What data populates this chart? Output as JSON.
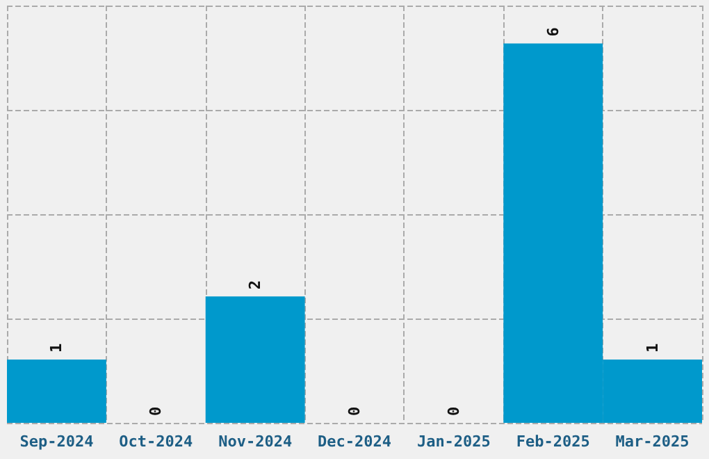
{
  "chart_data": {
    "type": "bar",
    "categories": [
      "Sep-2024",
      "Oct-2024",
      "Nov-2024",
      "Dec-2024",
      "Jan-2025",
      "Feb-2025",
      "Mar-2025"
    ],
    "values": [
      1,
      0,
      2,
      0,
      0,
      6,
      1
    ],
    "color": "#0099cc",
    "data_labels": true,
    "grid": true,
    "tick_labels": "x",
    "ylim": [
      0,
      6.6
    ],
    "yticks": [
      {
        "value": 0,
        "label": null
      },
      {
        "value": 1.65,
        "label": null
      },
      {
        "value": 3.3,
        "label": null
      },
      {
        "value": 4.95,
        "label": null
      },
      {
        "value": 6.6,
        "label": null
      }
    ]
  }
}
